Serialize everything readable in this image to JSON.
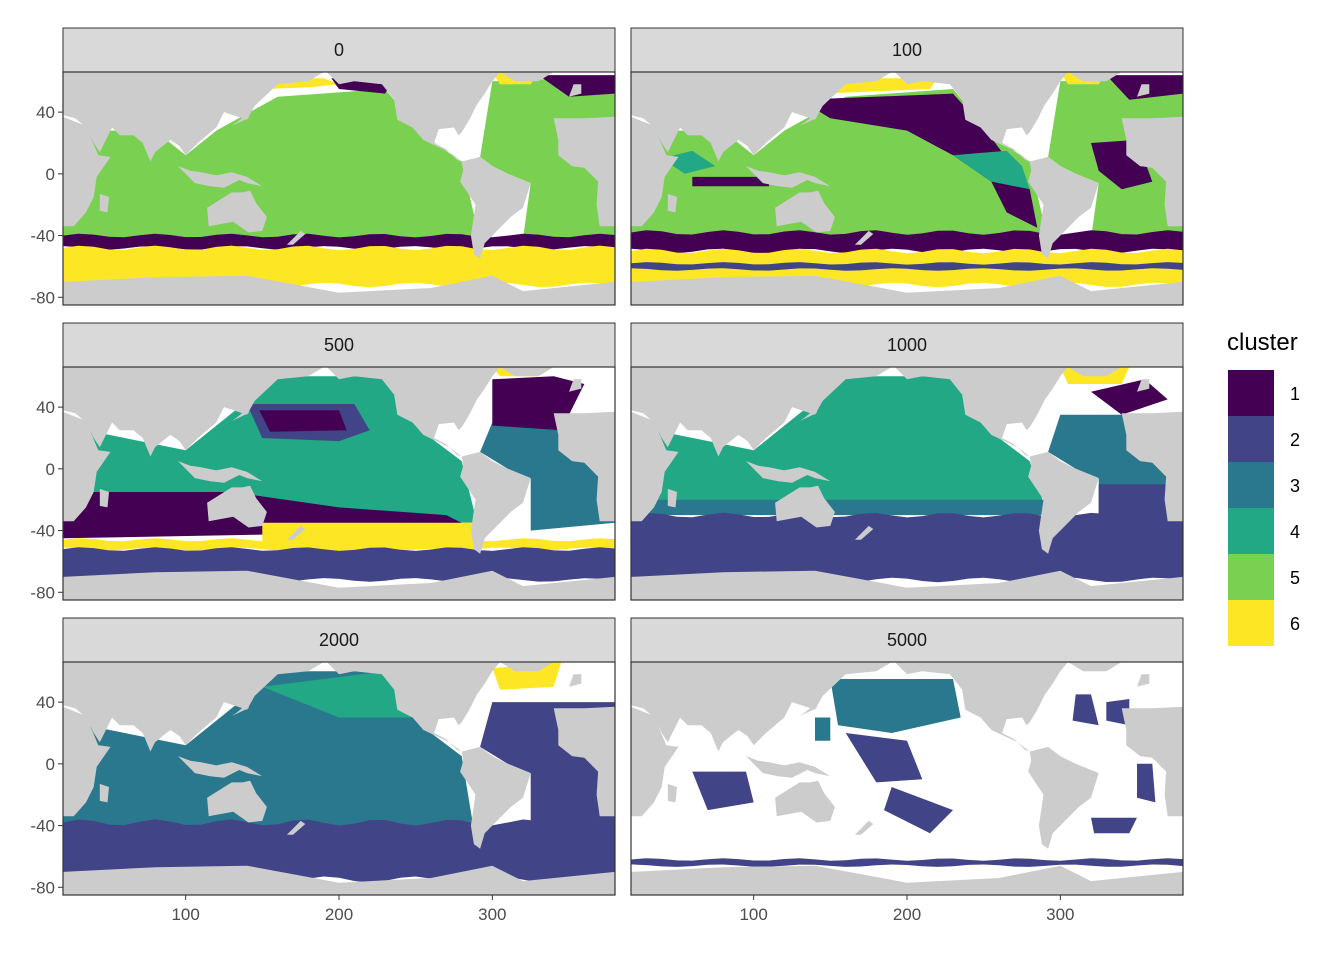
{
  "chart_data": {
    "type": "heatmap",
    "facet_variable": "depth",
    "facets": [
      {
        "label": "0",
        "clusters_present": [
          1,
          5,
          6
        ]
      },
      {
        "label": "100",
        "clusters_present": [
          1,
          2,
          4,
          5,
          6
        ]
      },
      {
        "label": "500",
        "clusters_present": [
          1,
          2,
          3,
          4,
          6
        ]
      },
      {
        "label": "1000",
        "clusters_present": [
          1,
          2,
          3,
          4,
          6
        ]
      },
      {
        "label": "2000",
        "clusters_present": [
          2,
          3,
          4,
          6
        ]
      },
      {
        "label": "5000",
        "clusters_present": [
          2,
          3
        ]
      }
    ],
    "x_ticks": [
      "100",
      "200",
      "300"
    ],
    "y_ticks": [
      "40",
      "0",
      "-40",
      "-80"
    ],
    "xlim": [
      20,
      380
    ],
    "ylim": [
      -85,
      66
    ],
    "legend": {
      "title": "cluster",
      "placement": "right",
      "entries": [
        {
          "label": "1",
          "color": "#440154"
        },
        {
          "label": "2",
          "color": "#414487"
        },
        {
          "label": "3",
          "color": "#2A788E"
        },
        {
          "label": "4",
          "color": "#22A884"
        },
        {
          "label": "5",
          "color": "#7AD151"
        },
        {
          "label": "6",
          "color": "#FDE725"
        }
      ]
    },
    "colors": {
      "land": "#cccccc",
      "no_data": "#ffffff",
      "strip": "#d9d9d9",
      "panel_border": "#333333",
      "grid": "#ebebeb"
    }
  }
}
